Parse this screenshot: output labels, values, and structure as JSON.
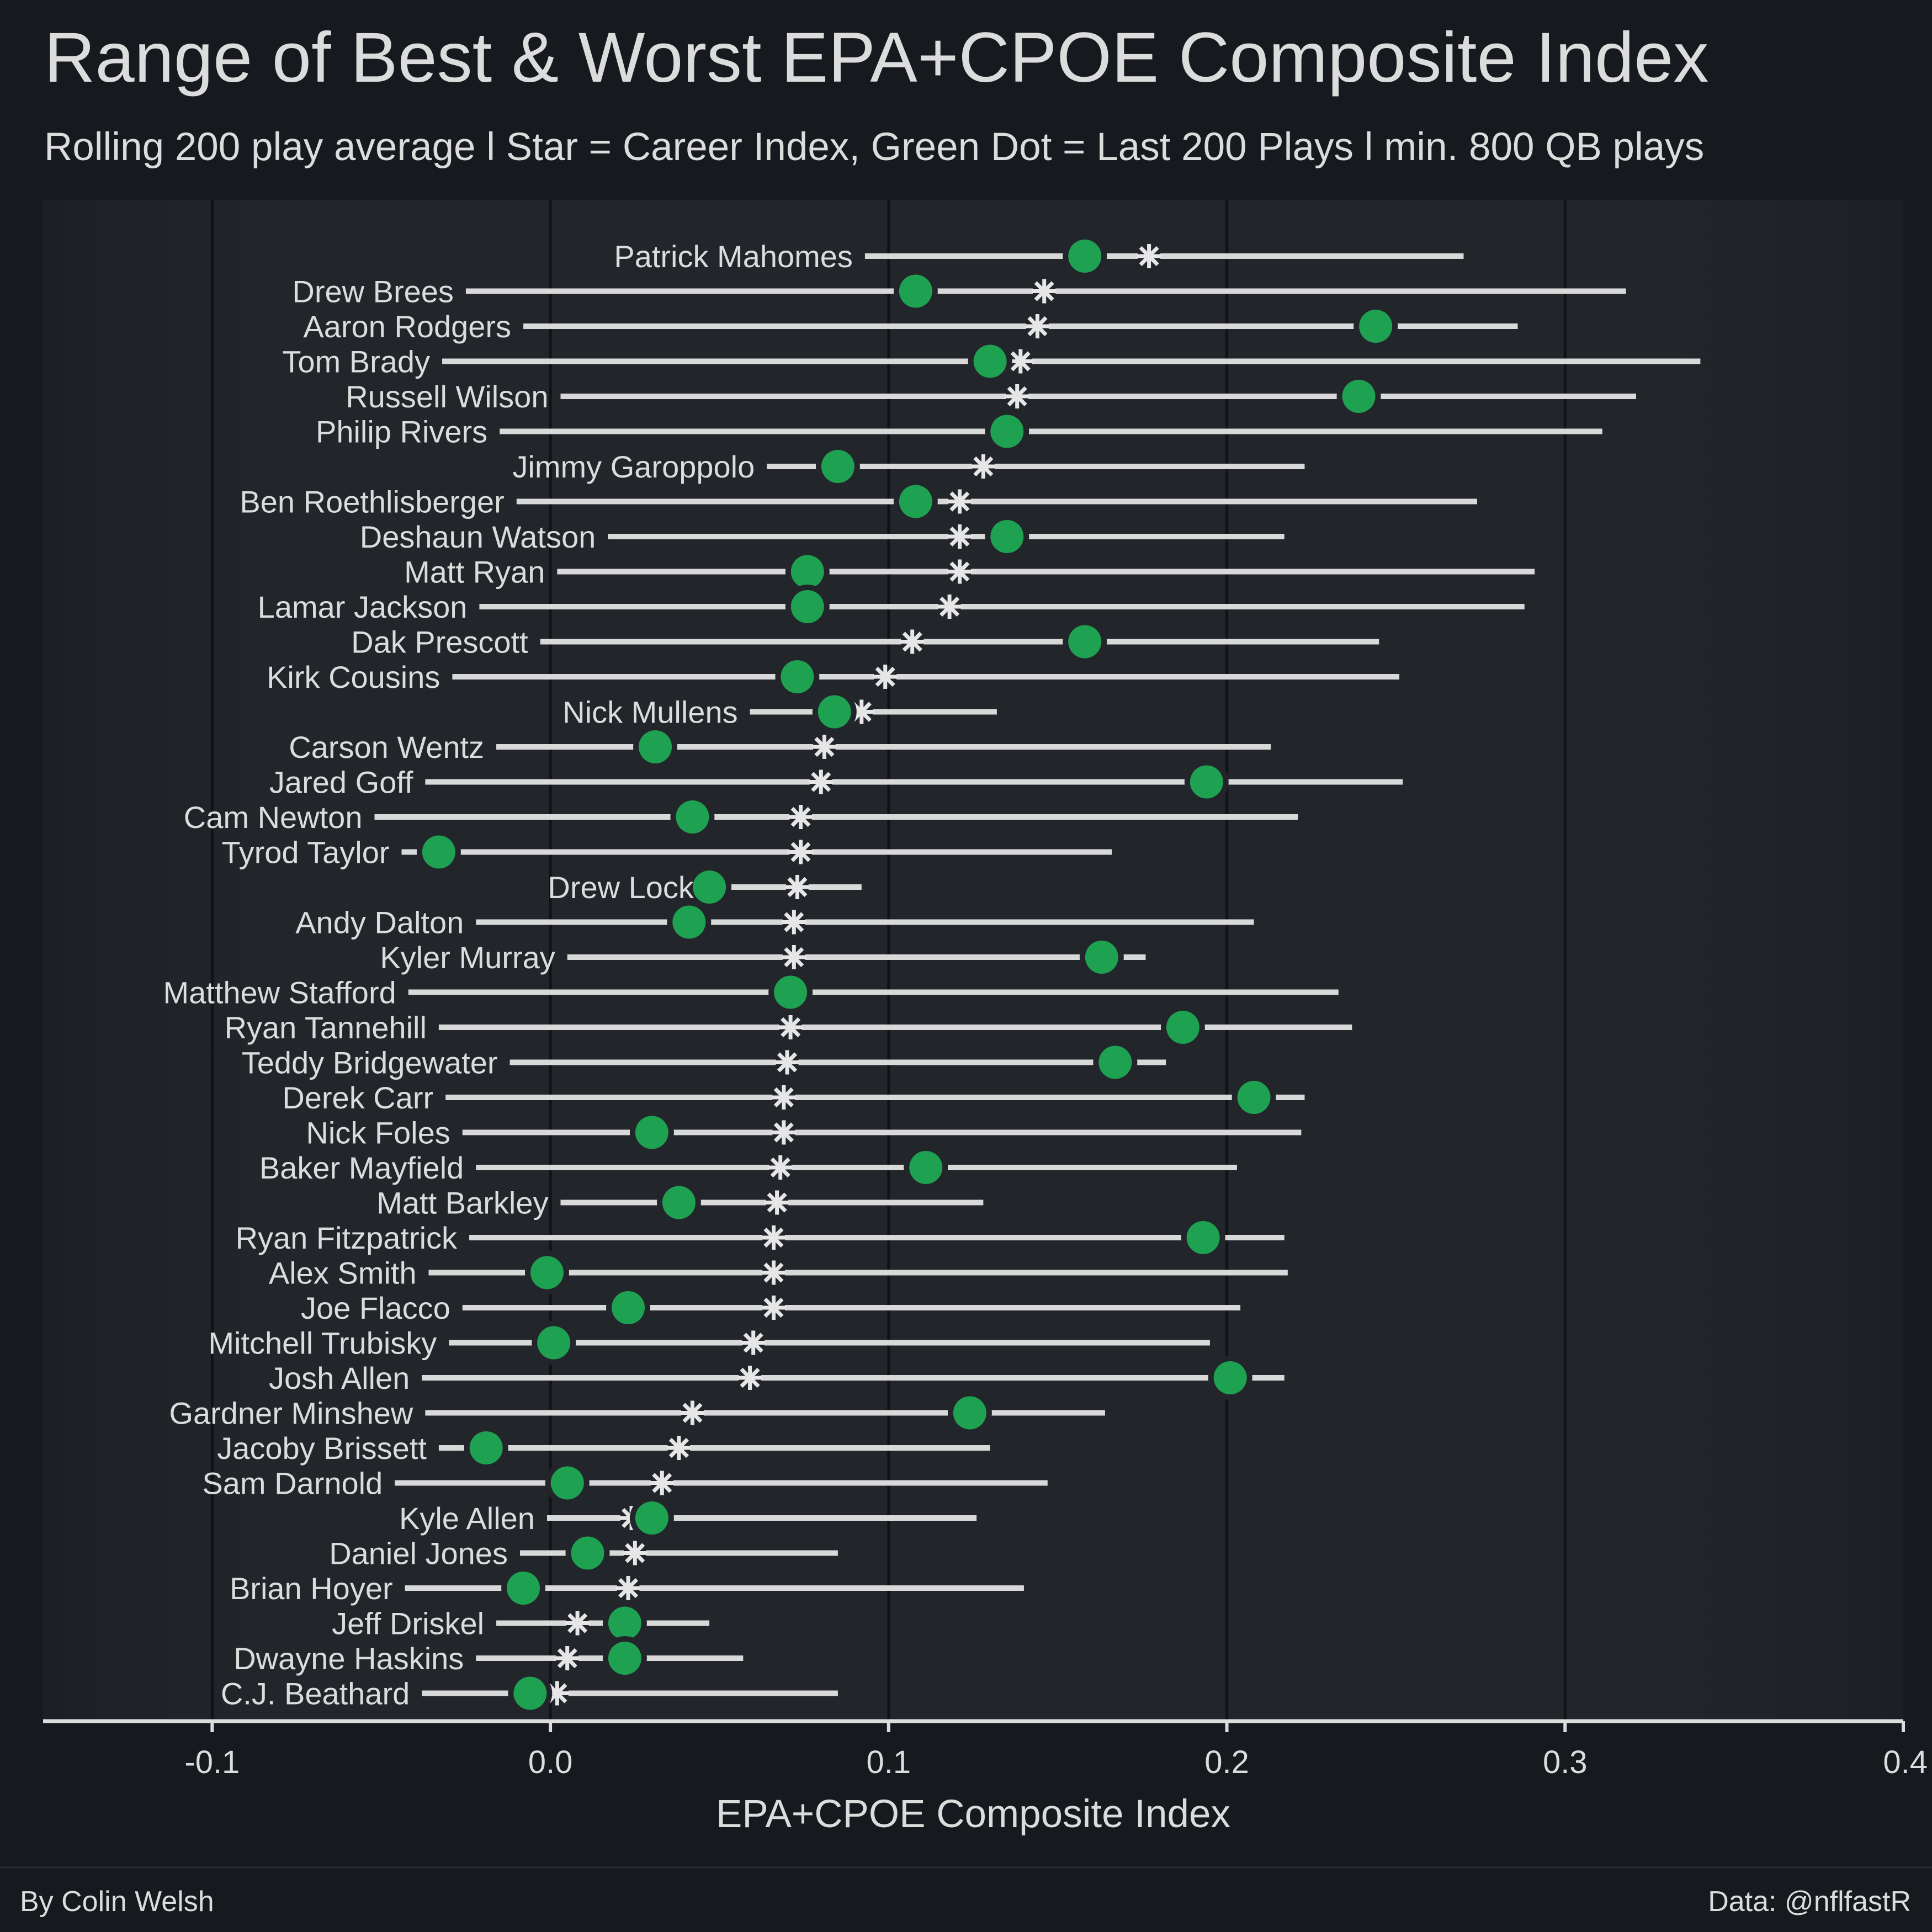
{
  "header": {
    "title": "Range of Best & Worst EPA+CPOE Composite Index",
    "subtitle": "Rolling 200 play average  l  Star = Career Index, Green Dot = Last 200 Plays  l  min. 800 QB plays"
  },
  "footer": {
    "credit": "By Colin Welsh",
    "source": "Data: @nflfastR"
  },
  "colors": {
    "background": "#16191d",
    "panel": "#22262b",
    "range_line": "#d9d9d9",
    "last_200_dot": "#1fa152",
    "career_star": "#e6e6e6",
    "text": "#dcdcdc"
  },
  "chart_data": {
    "type": "dumbbell",
    "title": "Range of Best & Worst EPA+CPOE Composite Index",
    "subtitle": "Rolling 200 play average  l  Star = Career Index, Green Dot = Last 200 Plays  l  min. 800 QB plays",
    "xlabel": "EPA+CPOE Composite Index",
    "ylabel": "",
    "xlim": [
      -0.15,
      0.4
    ],
    "xticks": [
      -0.1,
      0.0,
      0.1,
      0.2,
      0.3,
      0.4
    ],
    "xtick_labels": [
      "-0.1",
      "0.0",
      "0.1",
      "0.2",
      "0.3",
      "0.4"
    ],
    "grid": "vertical major",
    "legend": "none",
    "players": [
      {
        "name": "Patrick Mahomes",
        "min": 0.093,
        "max": 0.27,
        "career": 0.177,
        "last200": 0.158
      },
      {
        "name": "Drew Brees",
        "min": -0.025,
        "max": 0.318,
        "career": 0.146,
        "last200": 0.108
      },
      {
        "name": "Aaron Rodgers",
        "min": -0.008,
        "max": 0.286,
        "career": 0.144,
        "last200": 0.244
      },
      {
        "name": "Tom Brady",
        "min": -0.032,
        "max": 0.34,
        "career": 0.139,
        "last200": 0.13
      },
      {
        "name": "Russell Wilson",
        "min": 0.003,
        "max": 0.321,
        "career": 0.138,
        "last200": 0.239
      },
      {
        "name": "Philip Rivers",
        "min": -0.015,
        "max": 0.311,
        "career": 0.135,
        "last200": 0.135
      },
      {
        "name": "Jimmy Garoppolo",
        "min": 0.064,
        "max": 0.223,
        "career": 0.128,
        "last200": 0.085
      },
      {
        "name": "Ben Roethlisberger",
        "min": -0.01,
        "max": 0.274,
        "career": 0.121,
        "last200": 0.108
      },
      {
        "name": "Deshaun Watson",
        "min": 0.017,
        "max": 0.217,
        "career": 0.121,
        "last200": 0.135
      },
      {
        "name": "Matt Ryan",
        "min": 0.002,
        "max": 0.291,
        "career": 0.121,
        "last200": 0.076
      },
      {
        "name": "Lamar Jackson",
        "min": -0.021,
        "max": 0.288,
        "career": 0.118,
        "last200": 0.076
      },
      {
        "name": "Dak Prescott",
        "min": -0.003,
        "max": 0.245,
        "career": 0.107,
        "last200": 0.158
      },
      {
        "name": "Kirk Cousins",
        "min": -0.029,
        "max": 0.251,
        "career": 0.099,
        "last200": 0.073
      },
      {
        "name": "Nick Mullens",
        "min": 0.059,
        "max": 0.132,
        "career": 0.092,
        "last200": 0.084
      },
      {
        "name": "Carson Wentz",
        "min": -0.016,
        "max": 0.213,
        "career": 0.081,
        "last200": 0.031
      },
      {
        "name": "Jared Goff",
        "min": -0.037,
        "max": 0.252,
        "career": 0.08,
        "last200": 0.194
      },
      {
        "name": "Cam Newton",
        "min": -0.052,
        "max": 0.221,
        "career": 0.074,
        "last200": 0.042
      },
      {
        "name": "Tyrod Taylor",
        "min": -0.044,
        "max": 0.166,
        "career": 0.074,
        "last200": -0.033
      },
      {
        "name": "Drew Lock",
        "min": 0.046,
        "max": 0.092,
        "career": 0.073,
        "last200": 0.047
      },
      {
        "name": "Andy Dalton",
        "min": -0.022,
        "max": 0.208,
        "career": 0.072,
        "last200": 0.041
      },
      {
        "name": "Kyler Murray",
        "min": 0.005,
        "max": 0.176,
        "career": 0.072,
        "last200": 0.163
      },
      {
        "name": "Matthew Stafford",
        "min": -0.042,
        "max": 0.233,
        "career": 0.071,
        "last200": 0.071
      },
      {
        "name": "Ryan Tannehill",
        "min": -0.033,
        "max": 0.237,
        "career": 0.071,
        "last200": 0.187
      },
      {
        "name": "Teddy Bridgewater",
        "min": -0.012,
        "max": 0.182,
        "career": 0.07,
        "last200": 0.167
      },
      {
        "name": "Derek Carr",
        "min": -0.031,
        "max": 0.223,
        "career": 0.069,
        "last200": 0.208
      },
      {
        "name": "Nick Foles",
        "min": -0.026,
        "max": 0.222,
        "career": 0.069,
        "last200": 0.03
      },
      {
        "name": "Baker Mayfield",
        "min": -0.022,
        "max": 0.203,
        "career": 0.068,
        "last200": 0.111
      },
      {
        "name": "Matt Barkley",
        "min": 0.003,
        "max": 0.128,
        "career": 0.067,
        "last200": 0.038
      },
      {
        "name": "Ryan Fitzpatrick",
        "min": -0.024,
        "max": 0.217,
        "career": 0.066,
        "last200": 0.193
      },
      {
        "name": "Alex Smith",
        "min": -0.036,
        "max": 0.218,
        "career": 0.066,
        "last200": -0.001
      },
      {
        "name": "Joe Flacco",
        "min": -0.026,
        "max": 0.204,
        "career": 0.066,
        "last200": 0.023
      },
      {
        "name": "Mitchell Trubisky",
        "min": -0.03,
        "max": 0.195,
        "career": 0.06,
        "last200": 0.001
      },
      {
        "name": "Josh Allen",
        "min": -0.038,
        "max": 0.217,
        "career": 0.059,
        "last200": 0.201
      },
      {
        "name": "Gardner Minshew",
        "min": -0.037,
        "max": 0.164,
        "career": 0.042,
        "last200": 0.124
      },
      {
        "name": "Jacoby Brissett",
        "min": -0.033,
        "max": 0.13,
        "career": 0.038,
        "last200": -0.019
      },
      {
        "name": "Sam Darnold",
        "min": -0.046,
        "max": 0.147,
        "career": 0.033,
        "last200": 0.005
      },
      {
        "name": "Kyle Allen",
        "min": -0.001,
        "max": 0.126,
        "career": 0.024,
        "last200": 0.03
      },
      {
        "name": "Daniel Jones",
        "min": -0.009,
        "max": 0.085,
        "career": 0.025,
        "last200": 0.011
      },
      {
        "name": "Brian Hoyer",
        "min": -0.043,
        "max": 0.14,
        "career": 0.023,
        "last200": -0.008
      },
      {
        "name": "Jeff Driskel",
        "min": -0.016,
        "max": 0.047,
        "career": 0.008,
        "last200": 0.022
      },
      {
        "name": "Dwayne Haskins",
        "min": -0.022,
        "max": 0.057,
        "career": 0.005,
        "last200": 0.022
      },
      {
        "name": "C.J. Beathard",
        "min": -0.038,
        "max": 0.085,
        "career": 0.002,
        "last200": -0.006
      }
    ]
  }
}
